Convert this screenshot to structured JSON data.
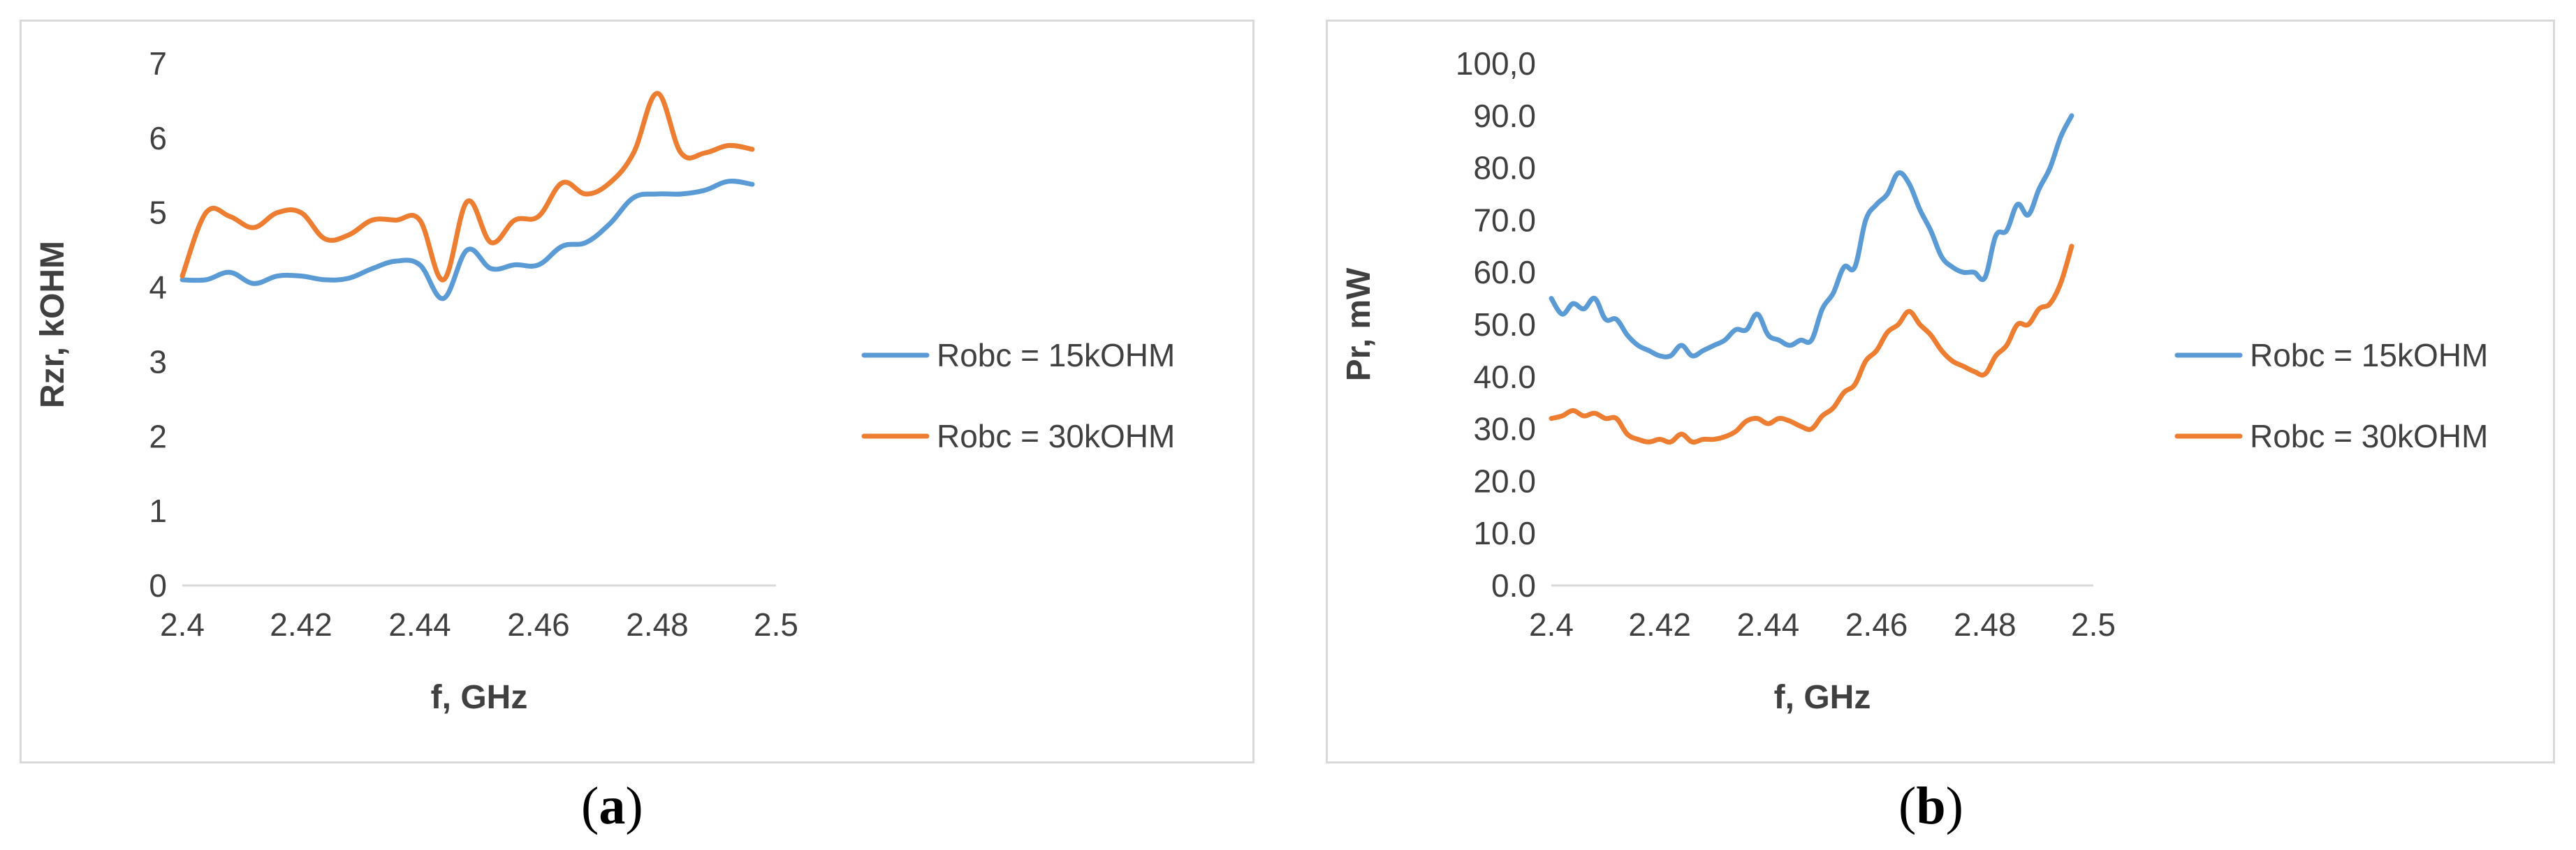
{
  "captions": {
    "a_open": "(",
    "a_letter": "a",
    "a_close": ")",
    "b_open": "(",
    "b_letter": "b",
    "b_close": ")"
  },
  "chart_data": [
    {
      "type": "line",
      "xlabel": "f,  GHz",
      "ylabel": "Rzr, kOHM",
      "xlim": [
        2.4,
        2.5
      ],
      "ylim": [
        0,
        7
      ],
      "xticks": [
        "2.4",
        "2.42",
        "2.44",
        "2.46",
        "2.48",
        "2.5"
      ],
      "yticks": [
        "0",
        "1",
        "2",
        "3",
        "4",
        "5",
        "6",
        "7"
      ],
      "grid": false,
      "legend": "right",
      "colors": [
        "#5b9bd5",
        "#ed7d31"
      ],
      "series": [
        {
          "name": "Robc = 15kOHM",
          "x": [
            2.4,
            2.404,
            2.408,
            2.412,
            2.416,
            2.42,
            2.424,
            2.428,
            2.432,
            2.436,
            2.44,
            2.444,
            2.448,
            2.452,
            2.456,
            2.46,
            2.464,
            2.468,
            2.472,
            2.476,
            2.48,
            2.484,
            2.488,
            2.492,
            2.496
          ],
          "y": [
            4.1,
            4.1,
            4.2,
            4.05,
            4.15,
            4.15,
            4.1,
            4.12,
            4.25,
            4.35,
            4.3,
            3.85,
            4.5,
            4.25,
            4.3,
            4.3,
            4.55,
            4.6,
            4.85,
            5.2,
            5.25,
            5.25,
            5.3,
            5.42,
            5.38
          ]
        },
        {
          "name": "Robc = 30kOHM",
          "x": [
            2.4,
            2.404,
            2.408,
            2.412,
            2.416,
            2.42,
            2.424,
            2.428,
            2.432,
            2.436,
            2.44,
            2.444,
            2.448,
            2.452,
            2.456,
            2.46,
            2.464,
            2.468,
            2.472,
            2.476,
            2.48,
            2.484,
            2.488,
            2.492,
            2.496
          ],
          "y": [
            4.15,
            5.0,
            4.95,
            4.8,
            5.0,
            5.0,
            4.65,
            4.7,
            4.9,
            4.9,
            4.9,
            4.1,
            5.15,
            4.6,
            4.9,
            4.95,
            5.4,
            5.25,
            5.4,
            5.8,
            6.6,
            5.8,
            5.8,
            5.9,
            5.85
          ]
        }
      ]
    },
    {
      "type": "line",
      "xlabel": "f,  GHz",
      "ylabel": "Pr, mW",
      "xlim": [
        2.4,
        2.5
      ],
      "ylim": [
        0,
        100
      ],
      "xticks": [
        "2.4",
        "2.42",
        "2.44",
        "2.46",
        "2.48",
        "2.5"
      ],
      "yticks": [
        "0.0",
        "10.0",
        "20.0",
        "30.0",
        "40.0",
        "50.0",
        "60.0",
        "70.0",
        "80.0",
        "90.0",
        "100,0"
      ],
      "grid": false,
      "legend": "right",
      "colors": [
        "#5b9bd5",
        "#ed7d31"
      ],
      "series": [
        {
          "name": "Robc = 15kOHM",
          "x": [
            2.4,
            2.402,
            2.404,
            2.406,
            2.408,
            2.41,
            2.412,
            2.414,
            2.416,
            2.418,
            2.42,
            2.422,
            2.424,
            2.426,
            2.428,
            2.43,
            2.432,
            2.434,
            2.436,
            2.438,
            2.44,
            2.442,
            2.444,
            2.446,
            2.448,
            2.45,
            2.452,
            2.454,
            2.456,
            2.458,
            2.46,
            2.462,
            2.464,
            2.466,
            2.468,
            2.47,
            2.472,
            2.474,
            2.476,
            2.478,
            2.48,
            2.482,
            2.484,
            2.486,
            2.488,
            2.49,
            2.492,
            2.494,
            2.496
          ],
          "y": [
            55,
            52,
            54,
            53,
            55,
            51,
            51,
            48,
            46,
            45,
            44,
            44,
            46,
            44,
            45,
            46,
            47,
            49,
            49,
            52,
            48,
            47,
            46,
            47,
            47,
            53,
            56,
            61,
            61,
            70,
            73,
            75,
            79,
            77,
            72,
            68,
            63,
            61,
            60,
            60,
            59,
            67,
            68,
            73,
            71,
            76,
            80,
            86,
            90
          ]
        },
        {
          "name": "Robc = 30kOHM",
          "x": [
            2.4,
            2.402,
            2.404,
            2.406,
            2.408,
            2.41,
            2.412,
            2.414,
            2.416,
            2.418,
            2.42,
            2.422,
            2.424,
            2.426,
            2.428,
            2.43,
            2.432,
            2.434,
            2.436,
            2.438,
            2.44,
            2.442,
            2.444,
            2.446,
            2.448,
            2.45,
            2.452,
            2.454,
            2.456,
            2.458,
            2.46,
            2.462,
            2.464,
            2.466,
            2.468,
            2.47,
            2.472,
            2.474,
            2.476,
            2.478,
            2.48,
            2.482,
            2.484,
            2.486,
            2.488,
            2.49,
            2.492,
            2.494,
            2.496
          ],
          "y": [
            32,
            32.5,
            33.5,
            32.5,
            33,
            32,
            32,
            29,
            28,
            27.5,
            28,
            27.5,
            29,
            27.5,
            28,
            28,
            28.5,
            29.5,
            31.5,
            32,
            31,
            32,
            31.5,
            30.5,
            30,
            32.5,
            34,
            37,
            38.5,
            43,
            45,
            48.5,
            50,
            52.5,
            50,
            48,
            45,
            43,
            42,
            41,
            40.5,
            44,
            46,
            50,
            50,
            53,
            54,
            58,
            65
          ]
        }
      ]
    }
  ]
}
